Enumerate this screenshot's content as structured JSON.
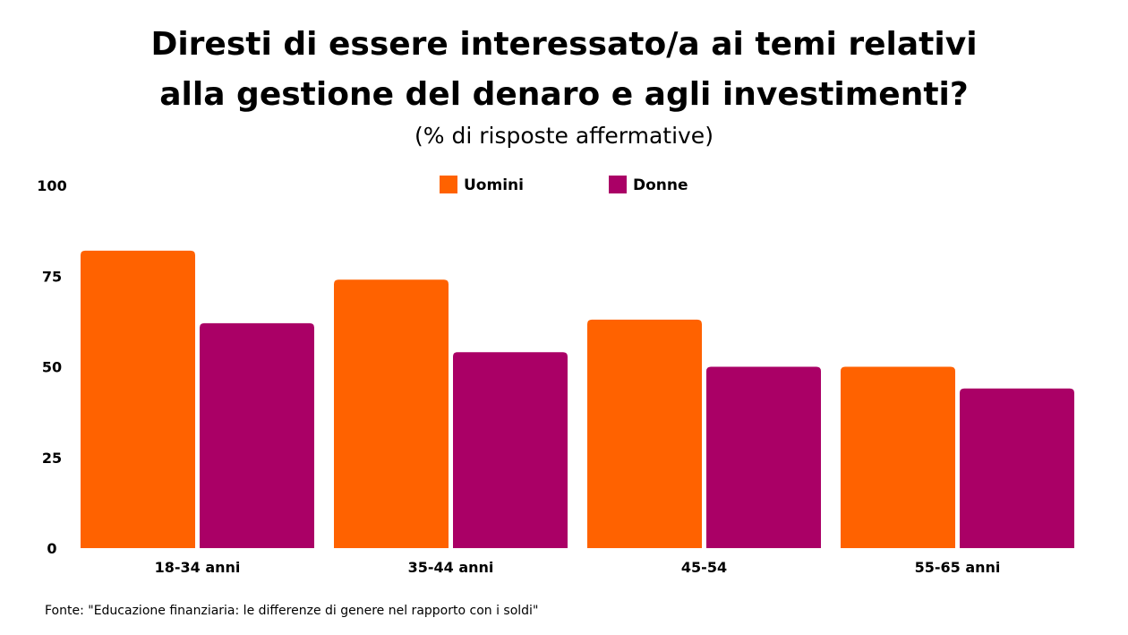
{
  "header": {
    "title_line1": "Diresti di essere interessato/a ai temi relativi",
    "title_line2": "alla gestione del denaro e agli investimenti?",
    "subtitle": "(% di risposte affermative)"
  },
  "source": "Fonte: \"Educazione finanziaria: le differenze di genere nel rapporto con i soldi\"",
  "chart_data": {
    "type": "bar",
    "title": "Diresti di essere interessato/a ai temi relativi alla gestione del denaro e agli investimenti?",
    "subtitle": "(% di risposte affermative)",
    "categories": [
      "18-34 anni",
      "35-44 anni",
      "45-54",
      "55-65 anni"
    ],
    "series": [
      {
        "name": "Uomini",
        "color": "#ff6200",
        "values": [
          82,
          74,
          63,
          50
        ]
      },
      {
        "name": "Donne",
        "color": "#aa0066",
        "values": [
          62,
          54,
          50,
          44
        ]
      }
    ],
    "yticks": [
      0,
      25,
      50,
      75,
      100
    ],
    "ylim": [
      0,
      100
    ],
    "xlabel": "",
    "ylabel": "",
    "grid": false,
    "legend_position": "top-center"
  }
}
